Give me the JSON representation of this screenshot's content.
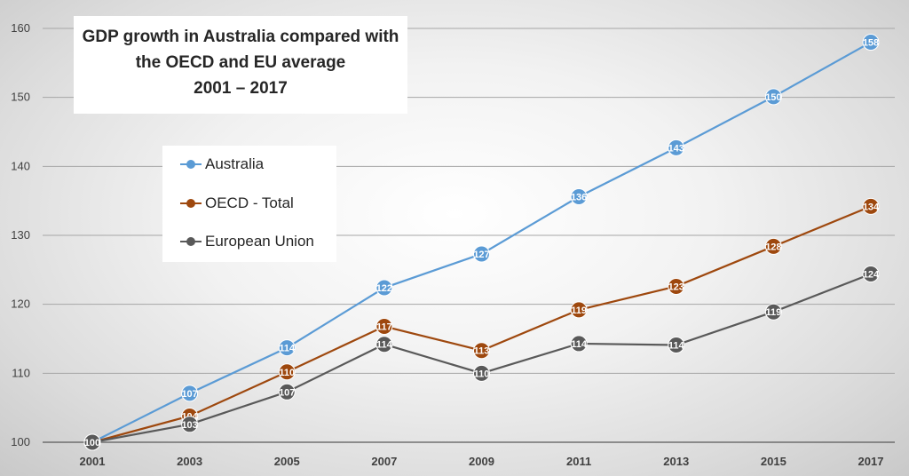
{
  "chart_data": {
    "type": "line",
    "title_lines": [
      "GDP growth in Australia compared with",
      "the OECD and EU average",
      "2001 – 2017"
    ],
    "categories": [
      "2001",
      "2003",
      "2005",
      "2007",
      "2009",
      "2011",
      "2013",
      "2015",
      "2017"
    ],
    "ylim": [
      100,
      160
    ],
    "yticks": [
      100,
      110,
      120,
      130,
      140,
      150,
      160
    ],
    "grid": true,
    "legend_position": "upper-left",
    "series": [
      {
        "name": "Australia",
        "color": "#5b9bd5",
        "values": [
          100,
          107,
          114,
          122,
          127,
          136,
          143,
          150,
          158
        ],
        "plot_values": [
          100,
          107.1,
          113.7,
          122.4,
          127.3,
          135.6,
          142.7,
          150.1,
          158.0
        ]
      },
      {
        "name": "OECD - Total",
        "color": "#9e480e",
        "values": [
          100,
          104,
          110,
          117,
          113,
          119,
          123,
          128,
          134
        ],
        "plot_values": [
          100,
          103.8,
          110.2,
          116.8,
          113.3,
          119.2,
          122.6,
          128.4,
          134.2
        ]
      },
      {
        "name": "European Union",
        "color": "#595959",
        "values": [
          100,
          103,
          107,
          114,
          110,
          114,
          114,
          119,
          124
        ],
        "plot_values": [
          100,
          102.6,
          107.3,
          114.2,
          110.0,
          114.3,
          114.1,
          118.9,
          124.4
        ]
      }
    ]
  }
}
